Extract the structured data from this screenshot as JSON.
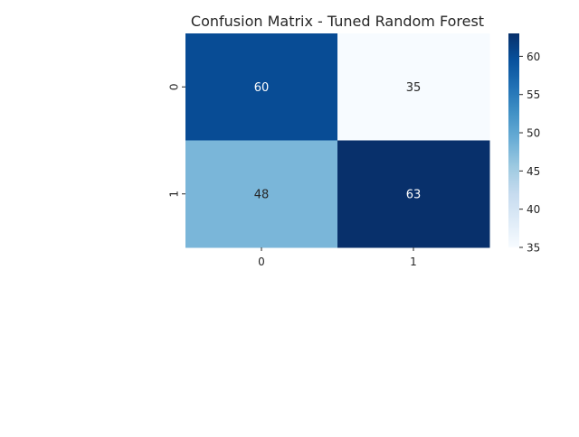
{
  "chart_data": {
    "type": "heatmap",
    "title": "Confusion Matrix - Tuned Random Forest",
    "xlabel": "",
    "ylabel": "",
    "x_categories": [
      "0",
      "1"
    ],
    "y_categories": [
      "0",
      "1"
    ],
    "values": [
      [
        60,
        35
      ],
      [
        48,
        63
      ]
    ],
    "colormap": "Blues",
    "colorbar": {
      "range": [
        35,
        63
      ],
      "ticks": [
        35,
        40,
        45,
        50,
        55,
        60
      ]
    }
  }
}
